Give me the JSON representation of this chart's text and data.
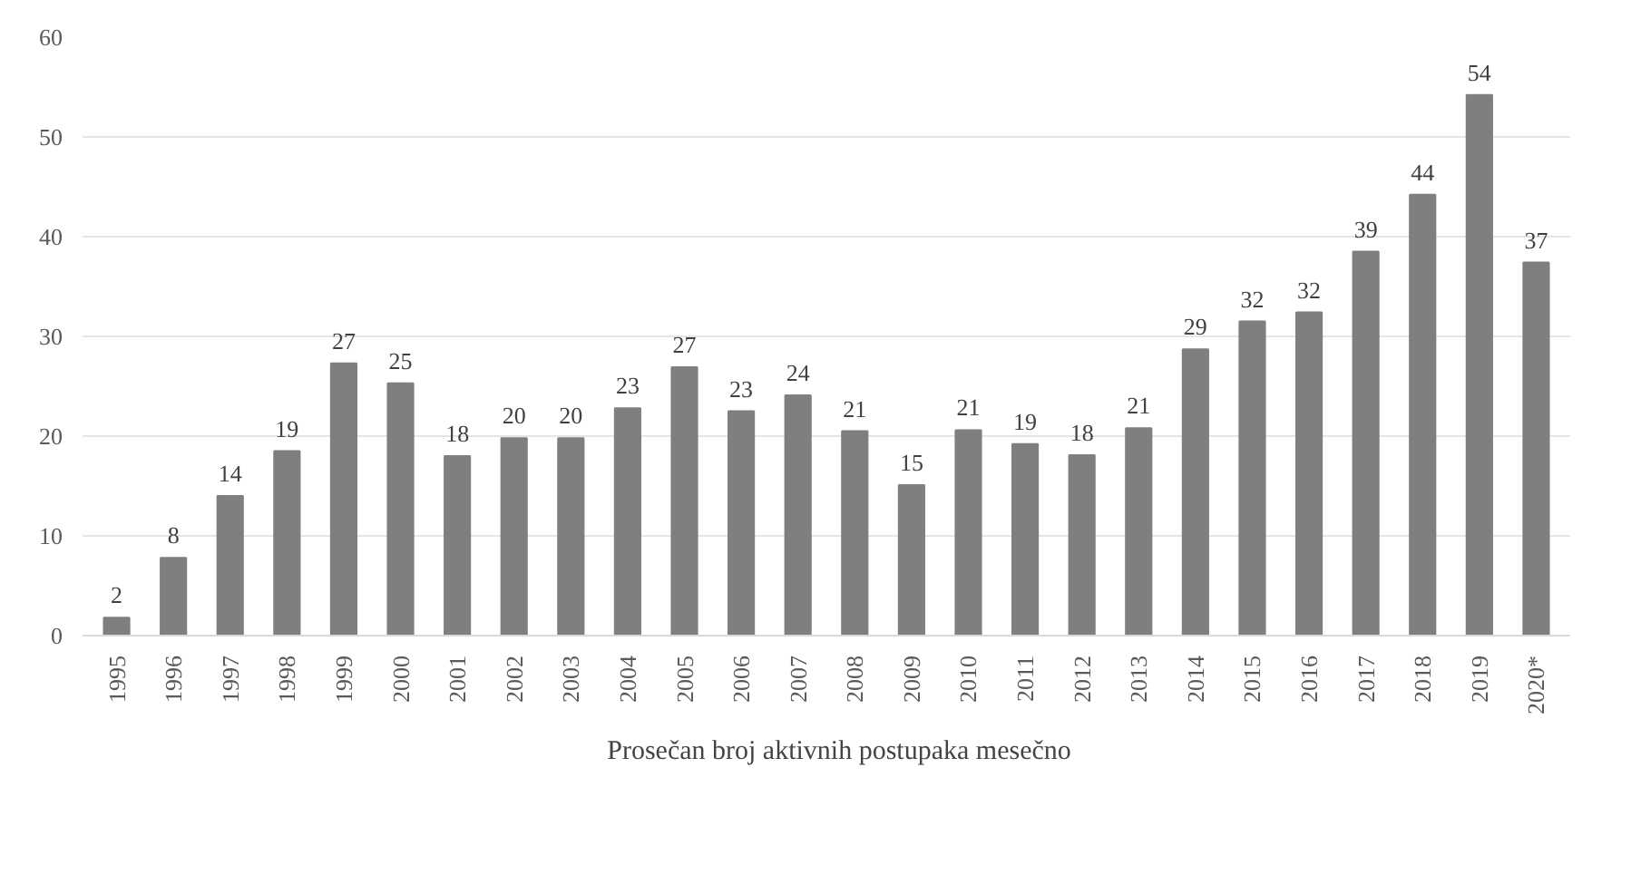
{
  "chart_data": {
    "type": "bar",
    "categories": [
      "1995",
      "1996",
      "1997",
      "1998",
      "1999",
      "2000",
      "2001",
      "2002",
      "2003",
      "2004",
      "2005",
      "2006",
      "2007",
      "2008",
      "2009",
      "2010",
      "2011",
      "2012",
      "2013",
      "2014",
      "2015",
      "2016",
      "2017",
      "2018",
      "2019",
      "2020*"
    ],
    "series": [
      {
        "name": "Prosečan broj aktivnih postupaka mesečno",
        "color": "#7f7f7f",
        "values": [
          1.8,
          7.8,
          14,
          18.5,
          27.3,
          25.3,
          18,
          19.8,
          19.8,
          22.8,
          26.9,
          22.5,
          24.1,
          20.5,
          15.1,
          20.6,
          19.2,
          18.1,
          20.8,
          28.7,
          31.5,
          32.4,
          38.5,
          44.2,
          54.2,
          37.4
        ],
        "value_labels": [
          "2",
          "8",
          "14",
          "19",
          "27",
          "25",
          "18",
          "20",
          "20",
          "23",
          "27",
          "23",
          "24",
          "21",
          "15",
          "21",
          "19",
          "18",
          "21",
          "29",
          "32",
          "32",
          "39",
          "44",
          "54",
          "37"
        ]
      }
    ],
    "ylim": [
      0,
      60
    ],
    "yticks": [
      0,
      10,
      20,
      30,
      40,
      50,
      60
    ],
    "grid": "y",
    "legend": "bottom"
  }
}
